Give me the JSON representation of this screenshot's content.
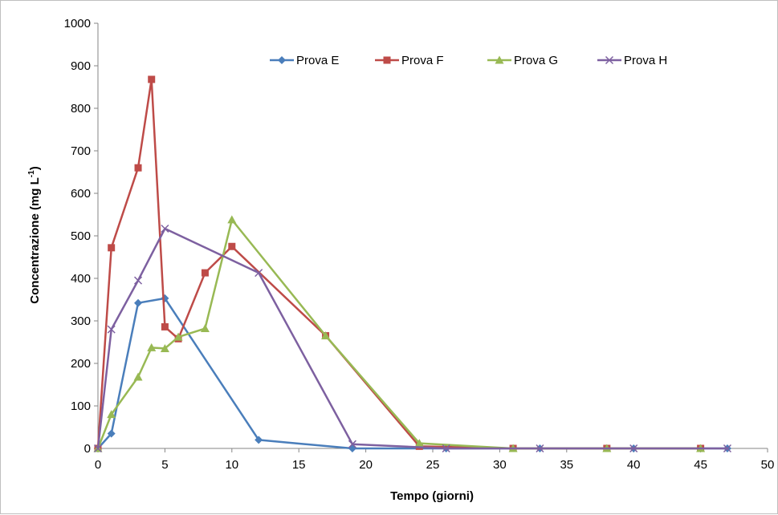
{
  "chart_data": {
    "type": "line",
    "title": "",
    "xlabel": "Tempo (giorni)",
    "ylabel_main": "Concentrazione (mg L",
    "ylabel_sup": "-1",
    "ylabel_close": ")",
    "xlim": [
      0,
      50
    ],
    "ylim": [
      0,
      1000
    ],
    "x_ticks": [
      0,
      5,
      10,
      15,
      20,
      25,
      30,
      35,
      40,
      45,
      50
    ],
    "y_ticks": [
      0,
      100,
      200,
      300,
      400,
      500,
      600,
      700,
      800,
      900,
      1000
    ],
    "grid": false,
    "legend": "top",
    "series": [
      {
        "name": "Prova E",
        "color": "#4a7ebb",
        "marker": "diamond",
        "points": [
          [
            0,
            0
          ],
          [
            1,
            35
          ],
          [
            3,
            342
          ],
          [
            5,
            353
          ],
          [
            12,
            20
          ],
          [
            19,
            0
          ],
          [
            26,
            0
          ],
          [
            33,
            0
          ],
          [
            40,
            0
          ],
          [
            47,
            0
          ]
        ]
      },
      {
        "name": "Prova F",
        "color": "#be4b48",
        "marker": "square",
        "points": [
          [
            0,
            0
          ],
          [
            1,
            472
          ],
          [
            3,
            660
          ],
          [
            4,
            868
          ],
          [
            5,
            286
          ],
          [
            6,
            258
          ],
          [
            8,
            413
          ],
          [
            10,
            475
          ],
          [
            17,
            265
          ],
          [
            24,
            5
          ],
          [
            31,
            0
          ],
          [
            38,
            0
          ],
          [
            45,
            0
          ]
        ]
      },
      {
        "name": "Prova G",
        "color": "#98b954",
        "marker": "triangle",
        "points": [
          [
            0,
            0
          ],
          [
            1,
            80
          ],
          [
            3,
            168
          ],
          [
            4,
            237
          ],
          [
            5,
            235
          ],
          [
            6,
            262
          ],
          [
            8,
            282
          ],
          [
            10,
            538
          ],
          [
            17,
            265
          ],
          [
            24,
            12
          ],
          [
            31,
            0
          ],
          [
            38,
            0
          ],
          [
            45,
            0
          ]
        ]
      },
      {
        "name": "Prova H",
        "color": "#7d60a0",
        "marker": "x",
        "points": [
          [
            0,
            0
          ],
          [
            1,
            280
          ],
          [
            3,
            395
          ],
          [
            5,
            517
          ],
          [
            12,
            413
          ],
          [
            19,
            10
          ],
          [
            26,
            0
          ],
          [
            33,
            0
          ],
          [
            40,
            0
          ],
          [
            47,
            0
          ]
        ]
      }
    ]
  }
}
